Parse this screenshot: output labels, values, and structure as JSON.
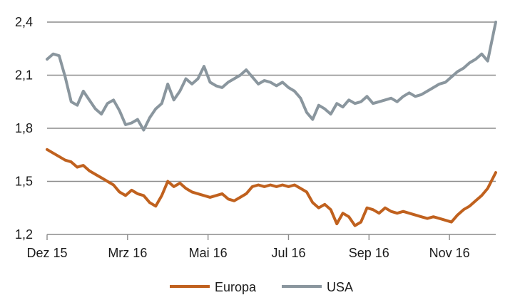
{
  "chart_data": {
    "type": "line",
    "title": "",
    "xlabel": "",
    "ylabel": "",
    "ylim": [
      1.2,
      2.4
    ],
    "yticks": [
      1.2,
      1.5,
      1.8,
      2.1,
      2.4
    ],
    "ytick_labels": [
      "1,2",
      "1,5",
      "1,8",
      "2,1",
      "2,4"
    ],
    "xlim": [
      0,
      22.3
    ],
    "xticks": [
      0,
      4,
      8,
      12,
      16,
      20
    ],
    "xtick_labels": [
      "Dez 15",
      "Mrz 16",
      "Mai 16",
      "Jul 16",
      "Sep 16",
      "Nov 16"
    ],
    "x_unit": "months since start of Dec 2015 (approx.)",
    "grid": "horizontal",
    "legend_position": "bottom-center",
    "series": [
      {
        "name": "Europa",
        "color": "#c0611e",
        "x": [
          0,
          0.3,
          0.6,
          0.9,
          1.2,
          1.5,
          1.8,
          2.1,
          2.4,
          2.7,
          3.0,
          3.3,
          3.6,
          3.9,
          4.2,
          4.5,
          4.8,
          5.1,
          5.4,
          5.7,
          6.0,
          6.3,
          6.6,
          6.9,
          7.2,
          7.5,
          7.8,
          8.1,
          8.4,
          8.7,
          9.0,
          9.3,
          9.6,
          9.9,
          10.2,
          10.5,
          10.8,
          11.1,
          11.4,
          11.7,
          12.0,
          12.3,
          12.6,
          12.9,
          13.2,
          13.5,
          13.8,
          14.1,
          14.4,
          14.7,
          15.0,
          15.3,
          15.6,
          15.9,
          16.2,
          16.5,
          16.8,
          17.1,
          17.4,
          17.7,
          18.0,
          18.3,
          18.6,
          18.9,
          19.2,
          19.5,
          19.8,
          20.1,
          20.4,
          20.7,
          21.0,
          21.3,
          21.6,
          21.9,
          22.3
        ],
        "values": [
          1.68,
          1.66,
          1.64,
          1.62,
          1.61,
          1.58,
          1.59,
          1.56,
          1.54,
          1.52,
          1.5,
          1.48,
          1.44,
          1.42,
          1.45,
          1.43,
          1.42,
          1.38,
          1.36,
          1.42,
          1.5,
          1.47,
          1.49,
          1.46,
          1.44,
          1.43,
          1.42,
          1.41,
          1.42,
          1.43,
          1.4,
          1.39,
          1.41,
          1.43,
          1.47,
          1.48,
          1.47,
          1.48,
          1.47,
          1.48,
          1.47,
          1.48,
          1.46,
          1.44,
          1.38,
          1.35,
          1.37,
          1.34,
          1.26,
          1.32,
          1.3,
          1.25,
          1.27,
          1.35,
          1.34,
          1.32,
          1.35,
          1.33,
          1.32,
          1.33,
          1.32,
          1.31,
          1.3,
          1.29,
          1.3,
          1.29,
          1.28,
          1.27,
          1.31,
          1.34,
          1.36,
          1.39,
          1.42,
          1.46,
          1.55
        ]
      },
      {
        "name": "USA",
        "color": "#8a969e",
        "x": [
          0,
          0.3,
          0.6,
          0.9,
          1.2,
          1.5,
          1.8,
          2.1,
          2.4,
          2.7,
          3.0,
          3.3,
          3.6,
          3.9,
          4.2,
          4.5,
          4.8,
          5.1,
          5.4,
          5.7,
          6.0,
          6.3,
          6.6,
          6.9,
          7.2,
          7.5,
          7.8,
          8.1,
          8.4,
          8.7,
          9.0,
          9.3,
          9.6,
          9.9,
          10.2,
          10.5,
          10.8,
          11.1,
          11.4,
          11.7,
          12.0,
          12.3,
          12.6,
          12.9,
          13.2,
          13.5,
          13.8,
          14.1,
          14.4,
          14.7,
          15.0,
          15.3,
          15.6,
          15.9,
          16.2,
          16.5,
          16.8,
          17.1,
          17.4,
          17.7,
          18.0,
          18.3,
          18.6,
          18.9,
          19.2,
          19.5,
          19.8,
          20.1,
          20.4,
          20.7,
          21.0,
          21.3,
          21.6,
          21.9,
          22.3
        ],
        "values": [
          2.19,
          2.22,
          2.21,
          2.09,
          1.95,
          1.93,
          2.01,
          1.96,
          1.91,
          1.88,
          1.94,
          1.96,
          1.9,
          1.82,
          1.83,
          1.85,
          1.79,
          1.86,
          1.91,
          1.94,
          2.05,
          1.96,
          2.01,
          2.08,
          2.05,
          2.08,
          2.15,
          2.06,
          2.04,
          2.03,
          2.06,
          2.08,
          2.1,
          2.13,
          2.09,
          2.05,
          2.07,
          2.06,
          2.04,
          2.06,
          2.03,
          2.01,
          1.97,
          1.89,
          1.85,
          1.93,
          1.91,
          1.88,
          1.94,
          1.92,
          1.96,
          1.94,
          1.95,
          1.98,
          1.94,
          1.95,
          1.96,
          1.97,
          1.95,
          1.98,
          2.0,
          1.98,
          1.99,
          2.01,
          2.03,
          2.05,
          2.06,
          2.09,
          2.12,
          2.14,
          2.17,
          2.19,
          2.22,
          2.18,
          2.4
        ]
      }
    ],
    "legend": [
      "Europa",
      "USA"
    ]
  }
}
